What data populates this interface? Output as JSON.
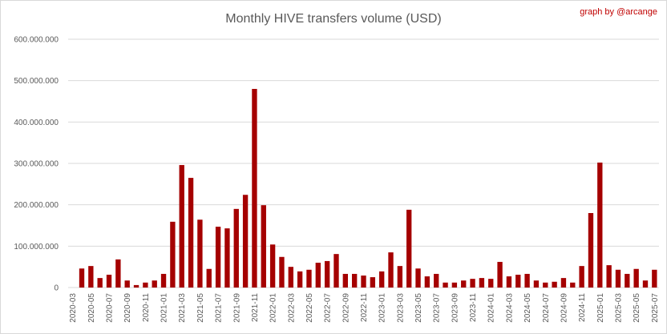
{
  "chart_data": {
    "type": "bar",
    "title": "Monthly HIVE transfers volume (USD)",
    "annotation": "graph by @arcange",
    "color": "#a50000",
    "grid": true,
    "categories": [
      "2020-03",
      null,
      "2020-05",
      null,
      "2020-07",
      null,
      "2020-09",
      null,
      "2020-11",
      null,
      "2021-01",
      null,
      "2021-03",
      null,
      "2021-05",
      null,
      "2021-07",
      null,
      "2021-09",
      null,
      "2021-11",
      null,
      "2022-01",
      null,
      "2022-03",
      null,
      "2022-05",
      null,
      "2022-07",
      null,
      "2022-09",
      null,
      "2022-11",
      null,
      "2023-01",
      null,
      "2023-03",
      null,
      "2023-05",
      null,
      "2023-07",
      null,
      "2023-09",
      null,
      "2023-11",
      null,
      "2024-01",
      null,
      "2024-03",
      null,
      "2024-05",
      null,
      "2024-07",
      null,
      "2024-09",
      null,
      "2024-11",
      null,
      "2025-01",
      null,
      "2025-03",
      null,
      "2025-05",
      null,
      "2025-07"
    ],
    "values": [
      0,
      46000000,
      52000000,
      23000000,
      31000000,
      68000000,
      17000000,
      6000000,
      12000000,
      17000000,
      33000000,
      159000000,
      296000000,
      265000000,
      164000000,
      45000000,
      147000000,
      143000000,
      190000000,
      224000000,
      480000000,
      199000000,
      104000000,
      74000000,
      50000000,
      39000000,
      43000000,
      60000000,
      64000000,
      81000000,
      33000000,
      33000000,
      29000000,
      25000000,
      39000000,
      85000000,
      52000000,
      188000000,
      46000000,
      27000000,
      33000000,
      12000000,
      12000000,
      17000000,
      21000000,
      23000000,
      21000000,
      62000000,
      27000000,
      31000000,
      33000000,
      17000000,
      12000000,
      14000000,
      23000000,
      12000000,
      52000000,
      180000000,
      302000000,
      54000000,
      43000000,
      33000000,
      45000000,
      17000000,
      43000000
    ],
    "ylim": [
      0,
      600000000
    ],
    "yticks": [
      0,
      {
        "value": 100000000,
        "label": "100.000.000"
      },
      {
        "value": 200000000,
        "label": "200.000.000"
      },
      {
        "value": 300000000,
        "label": "300.000.000"
      },
      {
        "value": 400000000,
        "label": "400.000.000"
      },
      {
        "value": 500000000,
        "label": "500.000.000"
      },
      {
        "value": 600000000,
        "label": "600.000.000"
      }
    ]
  }
}
